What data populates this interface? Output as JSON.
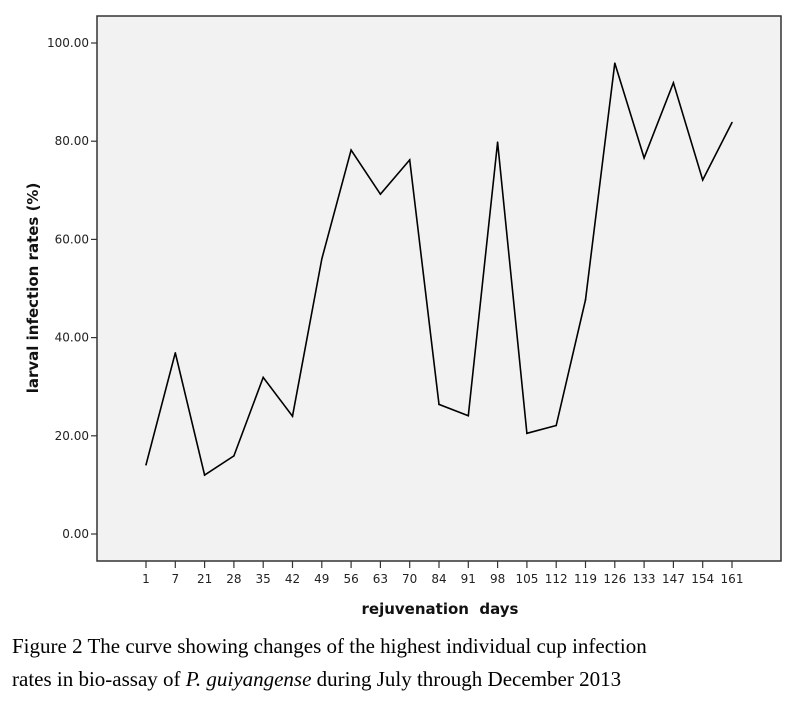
{
  "chart_data": {
    "type": "line",
    "title": "",
    "xlabel": "rejuvenation  days",
    "ylabel": "larval infection rates (%)",
    "categories": [
      "1",
      "7",
      "21",
      "28",
      "35",
      "42",
      "49",
      "56",
      "63",
      "70",
      "84",
      "91",
      "98",
      "105",
      "112",
      "119",
      "126",
      "133",
      "147",
      "154",
      "161"
    ],
    "series": [
      {
        "name": "highest individual cup infection rate",
        "values": [
          14.1,
          36.9,
          12.0,
          15.9,
          31.9,
          24.0,
          56.0,
          78.2,
          69.2,
          76.2,
          26.4,
          24.1,
          79.8,
          20.5,
          22.1,
          47.7,
          95.9,
          76.6,
          91.9,
          72.1,
          83.8
        ]
      }
    ],
    "yticks": [
      "0.00",
      "20.00",
      "40.00",
      "60.00",
      "80.00",
      "100.00"
    ],
    "ytick_values": [
      0,
      20,
      40,
      60,
      80,
      100
    ],
    "ylim": [
      -5.5,
      105.5
    ],
    "grid": false,
    "legend": "none",
    "colors": {
      "line": "#000000",
      "plot_background": "#f2f2f2",
      "frame": "#333333"
    }
  },
  "caption": {
    "line1": "Figure 2 The curve showing changes of the highest individual cup infection",
    "line2_pre": "rates in bio-assay of ",
    "line2_italic": "P. guiyangense",
    "line2_post": " during July through December 2013"
  }
}
